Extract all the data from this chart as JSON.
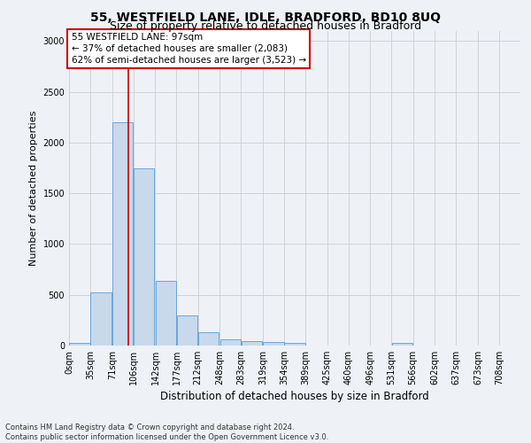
{
  "title": "55, WESTFIELD LANE, IDLE, BRADFORD, BD10 8UQ",
  "subtitle": "Size of property relative to detached houses in Bradford",
  "xlabel": "Distribution of detached houses by size in Bradford",
  "ylabel": "Number of detached properties",
  "footer_line1": "Contains HM Land Registry data © Crown copyright and database right 2024.",
  "footer_line2": "Contains public sector information licensed under the Open Government Licence v3.0.",
  "bin_labels": [
    "0sqm",
    "35sqm",
    "71sqm",
    "106sqm",
    "142sqm",
    "177sqm",
    "212sqm",
    "248sqm",
    "283sqm",
    "319sqm",
    "354sqm",
    "389sqm",
    "425sqm",
    "460sqm",
    "496sqm",
    "531sqm",
    "566sqm",
    "602sqm",
    "637sqm",
    "673sqm",
    "708sqm"
  ],
  "bar_values": [
    30,
    520,
    2200,
    1750,
    640,
    300,
    130,
    65,
    40,
    35,
    30,
    0,
    0,
    0,
    0,
    25,
    0,
    0,
    0,
    0,
    0
  ],
  "bar_color": "#c8d9eb",
  "bar_edgecolor": "#5b9bd5",
  "grid_color": "#cccccc",
  "bg_color": "#eef2f7",
  "annotation_text": "55 WESTFIELD LANE: 97sqm\n← 37% of detached houses are smaller (2,083)\n62% of semi-detached houses are larger (3,523) →",
  "annotation_box_color": "#ffffff",
  "annotation_box_edgecolor": "#cc0000",
  "vline_x": 97,
  "vline_color": "#cc0000",
  "bin_edges": [
    0,
    35,
    71,
    106,
    142,
    177,
    212,
    248,
    283,
    319,
    354,
    389,
    425,
    460,
    496,
    531,
    566,
    602,
    637,
    673,
    708
  ],
  "ylim": [
    0,
    3100
  ],
  "yticks": [
    0,
    500,
    1000,
    1500,
    2000,
    2500,
    3000
  ],
  "title_fontsize": 10,
  "subtitle_fontsize": 9,
  "xlabel_fontsize": 8.5,
  "ylabel_fontsize": 8,
  "tick_fontsize": 7,
  "annotation_fontsize": 7.5
}
